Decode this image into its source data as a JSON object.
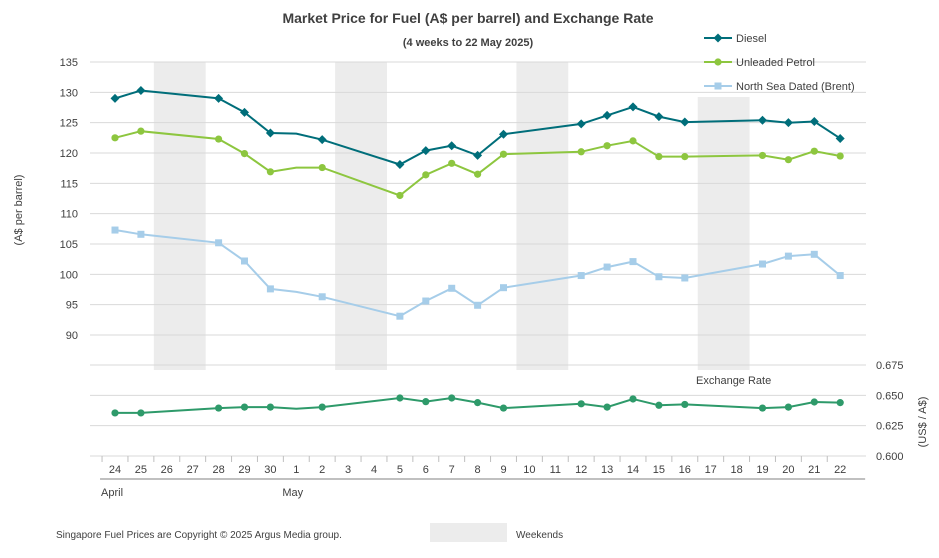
{
  "chart_data": {
    "type": "line",
    "title": "Market Price for Fuel (A$ per barrel) and Exchange Rate",
    "subtitle": "(4 weeks to 22 May 2025)",
    "ylabel": "(A$ per barrel)",
    "y2label": "(US$ / A$)",
    "ylim": [
      90,
      135
    ],
    "yticks": [
      "90",
      "95",
      "100",
      "105",
      "110",
      "115",
      "120",
      "125",
      "130",
      "135"
    ],
    "y2lim": [
      0.6,
      0.675
    ],
    "y2ticks": [
      "0.600",
      "0.625",
      "0.650",
      "0.675"
    ],
    "categories": [
      "24",
      "25",
      "26",
      "27",
      "28",
      "29",
      "30",
      "1",
      "2",
      "3",
      "4",
      "5",
      "6",
      "7",
      "8",
      "9",
      "10",
      "11",
      "12",
      "13",
      "14",
      "15",
      "16",
      "17",
      "18",
      "19",
      "20",
      "21",
      "22"
    ],
    "months": [
      {
        "label": "April",
        "start": 0,
        "end": 6
      },
      {
        "label": "May",
        "start": 7,
        "end": 28
      }
    ],
    "weekends": [
      [
        2,
        3
      ],
      [
        9,
        10
      ],
      [
        16,
        17
      ],
      [
        23,
        24
      ]
    ],
    "series": [
      {
        "name": "Diesel",
        "color": "#006e7a",
        "marker": "diamond",
        "axis": "left",
        "points": [
          [
            0,
            129.0
          ],
          [
            1,
            130.3
          ],
          [
            4,
            129.0
          ],
          [
            5,
            126.7
          ],
          [
            6,
            123.3
          ],
          [
            8,
            122.2
          ],
          [
            11,
            118.1
          ],
          [
            12,
            120.4
          ],
          [
            13,
            121.2
          ],
          [
            14,
            119.6
          ],
          [
            15,
            123.1
          ],
          [
            18,
            124.8
          ],
          [
            19,
            126.2
          ],
          [
            20,
            127.6
          ],
          [
            21,
            126.0
          ],
          [
            22,
            125.1
          ],
          [
            25,
            125.4
          ],
          [
            26,
            125.0
          ],
          [
            27,
            125.2
          ],
          [
            28,
            122.4
          ]
        ],
        "line_through": [
          [
            7,
            123.2
          ]
        ]
      },
      {
        "name": "Unleaded Petrol",
        "color": "#8dc63f",
        "marker": "circle",
        "axis": "left",
        "points": [
          [
            0,
            122.5
          ],
          [
            1,
            123.6
          ],
          [
            4,
            122.3
          ],
          [
            5,
            119.9
          ],
          [
            6,
            116.9
          ],
          [
            8,
            117.6
          ],
          [
            11,
            113.0
          ],
          [
            12,
            116.4
          ],
          [
            13,
            118.3
          ],
          [
            14,
            116.5
          ],
          [
            15,
            119.8
          ],
          [
            18,
            120.2
          ],
          [
            19,
            121.2
          ],
          [
            20,
            122.0
          ],
          [
            21,
            119.4
          ],
          [
            22,
            119.4
          ],
          [
            25,
            119.6
          ],
          [
            26,
            118.9
          ],
          [
            27,
            120.3
          ],
          [
            28,
            119.5
          ]
        ],
        "line_through": [
          [
            7,
            117.6
          ]
        ]
      },
      {
        "name": "North Sea Dated (Brent)",
        "color": "#a6cde9",
        "marker": "square",
        "axis": "left",
        "points": [
          [
            0,
            107.3
          ],
          [
            1,
            106.6
          ],
          [
            4,
            105.2
          ],
          [
            5,
            102.2
          ],
          [
            6,
            97.6
          ],
          [
            8,
            96.3
          ],
          [
            11,
            93.1
          ],
          [
            12,
            95.6
          ],
          [
            13,
            97.7
          ],
          [
            14,
            94.9
          ],
          [
            15,
            97.8
          ],
          [
            18,
            99.8
          ],
          [
            19,
            101.2
          ],
          [
            20,
            102.1
          ],
          [
            21,
            99.6
          ],
          [
            22,
            99.4
          ],
          [
            25,
            101.7
          ],
          [
            26,
            103.0
          ],
          [
            27,
            103.3
          ],
          [
            28,
            99.8
          ]
        ],
        "line_through": [
          [
            7,
            97.1
          ]
        ]
      },
      {
        "name": "Exchange Rate",
        "color": "#2e9a6a",
        "marker": "circle",
        "axis": "right",
        "points": [
          [
            0,
            0.6355
          ],
          [
            1,
            0.6355
          ],
          [
            4,
            0.6395
          ],
          [
            5,
            0.6403
          ],
          [
            6,
            0.6403
          ],
          [
            8,
            0.6403
          ],
          [
            11,
            0.6478
          ],
          [
            12,
            0.6448
          ],
          [
            13,
            0.6478
          ],
          [
            14,
            0.644
          ],
          [
            15,
            0.6395
          ],
          [
            18,
            0.643
          ],
          [
            19,
            0.6403
          ],
          [
            20,
            0.647
          ],
          [
            21,
            0.6418
          ],
          [
            22,
            0.6425
          ],
          [
            25,
            0.6395
          ],
          [
            26,
            0.6403
          ],
          [
            27,
            0.6445
          ],
          [
            28,
            0.644
          ]
        ],
        "line_through": [
          [
            7,
            0.639
          ]
        ]
      }
    ],
    "exchange_label": "Exchange Rate",
    "weekend_legend": "Weekends",
    "footnote": "Singapore Fuel Prices are Copyright © 2025 Argus Media group."
  }
}
